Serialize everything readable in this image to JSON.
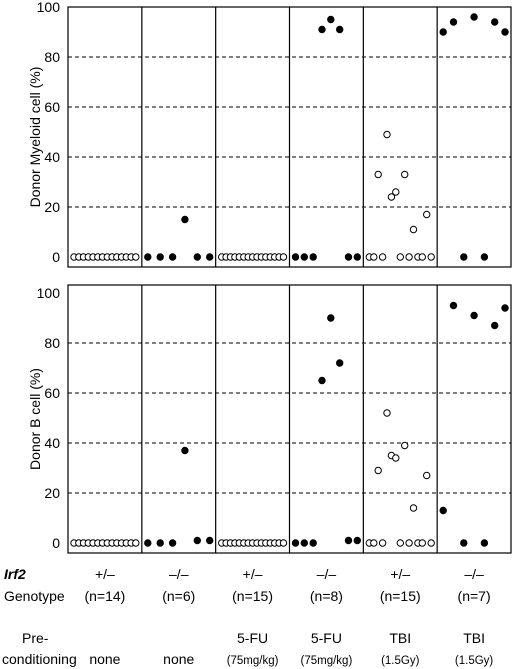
{
  "chart_data": [
    {
      "type": "scatter",
      "ylabel": "Donor Myeloid cell (%)",
      "ylim": [
        0,
        100
      ],
      "yticks": [
        0,
        20,
        40,
        60,
        80,
        100
      ],
      "grid": "horizontal dashed at 20, 40, 60, 80",
      "groups": [
        {
          "genotype": "+/–",
          "n": "(n=14)",
          "filled": false,
          "values": [
            0,
            0,
            0,
            0,
            0,
            0,
            0,
            0,
            0,
            0,
            0,
            0,
            0,
            0
          ]
        },
        {
          "genotype": "–/–",
          "n": "(n=6)",
          "filled": true,
          "values": [
            0,
            0,
            0,
            15,
            0,
            0
          ]
        },
        {
          "genotype": "+/–",
          "n": "(n=15)",
          "filled": false,
          "values": [
            0,
            0,
            0,
            0,
            0,
            0,
            0,
            0,
            0,
            0,
            0,
            0,
            0,
            0,
            0
          ]
        },
        {
          "genotype": "–/–",
          "n": "(n=8)",
          "filled": true,
          "values": [
            0,
            0,
            0,
            91,
            95,
            91,
            0,
            0
          ]
        },
        {
          "genotype": "+/–",
          "n": "(n=15)",
          "filled": false,
          "values": [
            0,
            0,
            33,
            0,
            49,
            24,
            26,
            0,
            33,
            0,
            11,
            0,
            0,
            17,
            0
          ]
        },
        {
          "genotype": "–/–",
          "n": "(n=7)",
          "filled": true,
          "values": [
            90,
            94,
            0,
            96,
            0,
            94,
            90
          ]
        }
      ]
    },
    {
      "type": "scatter",
      "ylabel": "Donor B cell (%)",
      "ylim": [
        0,
        100
      ],
      "yticks": [
        0,
        20,
        40,
        60,
        80,
        100
      ],
      "grid": "horizontal dashed at 20, 40, 60, 80",
      "groups": [
        {
          "genotype": "+/–",
          "n": "(n=14)",
          "filled": false,
          "values": [
            0,
            0,
            0,
            0,
            0,
            0,
            0,
            0,
            0,
            0,
            0,
            0,
            0,
            0
          ]
        },
        {
          "genotype": "–/–",
          "n": "(n=6)",
          "filled": true,
          "values": [
            0,
            0,
            0,
            37,
            1,
            1
          ]
        },
        {
          "genotype": "+/–",
          "n": "(n=15)",
          "filled": false,
          "values": [
            0,
            0,
            0,
            0,
            0,
            0,
            0,
            0,
            0,
            0,
            0,
            0,
            0,
            0,
            0
          ]
        },
        {
          "genotype": "–/–",
          "n": "(n=8)",
          "filled": true,
          "values": [
            0,
            0,
            0,
            65,
            90,
            72,
            1,
            1
          ]
        },
        {
          "genotype": "+/–",
          "n": "(n=15)",
          "filled": false,
          "values": [
            0,
            0,
            29,
            0,
            52,
            35,
            34,
            0,
            39,
            0,
            14,
            0,
            0,
            27,
            0
          ]
        },
        {
          "genotype": "–/–",
          "n": "(n=7)",
          "filled": true,
          "values": [
            13,
            95,
            0,
            91,
            0,
            87,
            94
          ]
        }
      ]
    }
  ],
  "table": {
    "genotype_label_1": "Irf2",
    "genotype_label_2": "Genotype",
    "precond_label_1": "Pre-",
    "precond_label_2": "conditioning",
    "columns": [
      {
        "genotype": "+/–",
        "n": "(n=14)",
        "precond": "none",
        "dose": ""
      },
      {
        "genotype": "–/–",
        "n": "(n=6)",
        "precond": "none",
        "dose": ""
      },
      {
        "genotype": "+/–",
        "n": "(n=15)",
        "precond": "5-FU",
        "dose": "(75mg/kg)"
      },
      {
        "genotype": "–/–",
        "n": "(n=8)",
        "precond": "5-FU",
        "dose": "(75mg/kg)"
      },
      {
        "genotype": "+/–",
        "n": "(n=15)",
        "precond": "TBI",
        "dose": "(1.5Gy)"
      },
      {
        "genotype": "–/–",
        "n": "(n=7)",
        "precond": "TBI",
        "dose": "(1.5Gy)"
      }
    ]
  }
}
